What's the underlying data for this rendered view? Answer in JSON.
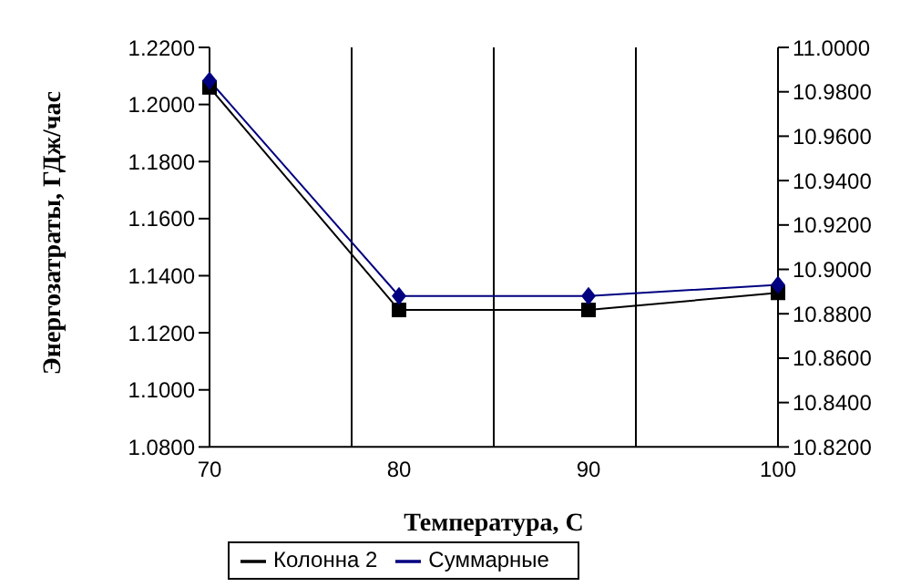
{
  "chart_data": {
    "type": "line",
    "xlabel": "Температура, С",
    "ylabel": "Энергозатраты, ГДж/час",
    "categories": [
      "70",
      "80",
      "90",
      "100"
    ],
    "series": [
      {
        "name": "Колонна 2",
        "color": "#000000",
        "marker": "square",
        "values": [
          1.206,
          1.128,
          1.128,
          1.134
        ]
      },
      {
        "name": "Суммарные",
        "color": "#000080",
        "marker": "diamond",
        "axis": "y2",
        "values": [
          10.985,
          10.888,
          10.888,
          10.893
        ]
      }
    ],
    "ylim": [
      1.08,
      1.22
    ],
    "yticks": [
      {
        "value": 1.08,
        "label": "1.0800"
      },
      {
        "value": 1.1,
        "label": "1.1000"
      },
      {
        "value": 1.12,
        "label": "1.1200"
      },
      {
        "value": 1.14,
        "label": "1.1400"
      },
      {
        "value": 1.16,
        "label": "1.1600"
      },
      {
        "value": 1.18,
        "label": "1.1800"
      },
      {
        "value": 1.2,
        "label": "1.2000"
      },
      {
        "value": 1.22,
        "label": "1.2200"
      }
    ],
    "y2lim": [
      10.82,
      11.0
    ],
    "y2ticks": [
      {
        "value": 10.82,
        "label": "10.8200"
      },
      {
        "value": 10.84,
        "label": "10.8400"
      },
      {
        "value": 10.86,
        "label": "10.8600"
      },
      {
        "value": 10.88,
        "label": "10.8800"
      },
      {
        "value": 10.9,
        "label": "10.9000"
      },
      {
        "value": 10.92,
        "label": "10.9200"
      },
      {
        "value": 10.94,
        "label": "10.9400"
      },
      {
        "value": 10.96,
        "label": "10.9600"
      },
      {
        "value": 10.98,
        "label": "10.9800"
      },
      {
        "value": 11.0,
        "label": "11.0000"
      }
    ],
    "grid": true,
    "legend": "bottom"
  }
}
